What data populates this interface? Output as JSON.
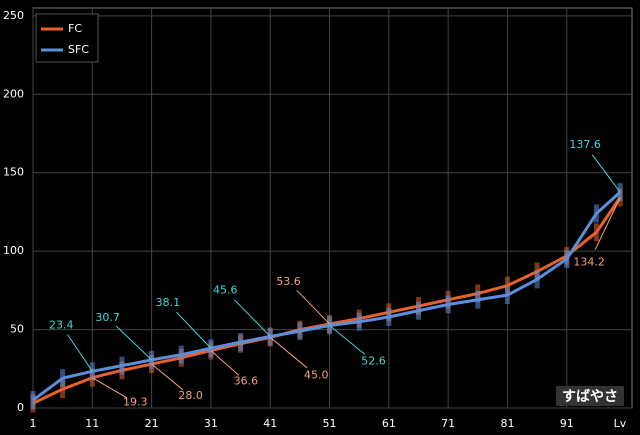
{
  "chart_data": {
    "type": "line",
    "annotation": "すばやさ",
    "xlabel": "Lv",
    "x": [
      1,
      6,
      11,
      16,
      21,
      26,
      31,
      36,
      41,
      46,
      51,
      56,
      61,
      66,
      71,
      76,
      81,
      86,
      91,
      96,
      100
    ],
    "series": [
      {
        "name": "FC",
        "color": "#e8602c",
        "label_color": "#f4a07c",
        "values": [
          3,
          12,
          19.3,
          24,
          28.0,
          32,
          36.6,
          41,
          45.0,
          50,
          53.6,
          57,
          61,
          65,
          69,
          73,
          78,
          87,
          97,
          112,
          134.2
        ],
        "value_labels": [
          null,
          null,
          "19.3",
          null,
          "28.0",
          null,
          "36.6",
          null,
          "45.0",
          null,
          "53.6",
          null,
          null,
          null,
          null,
          null,
          null,
          null,
          null,
          null,
          "134.2"
        ]
      },
      {
        "name": "SFC",
        "color": "#5b8fdd",
        "label_color": "#3fd8d8",
        "values": [
          5,
          19,
          23.4,
          27,
          30.7,
          34,
          38.1,
          42,
          45.6,
          49,
          52.6,
          55,
          58,
          62,
          66,
          69,
          72,
          82,
          95,
          124,
          137.6
        ],
        "value_labels": [
          null,
          null,
          "23.4",
          null,
          "30.7",
          null,
          "38.1",
          null,
          "45.6",
          null,
          "52.6",
          null,
          null,
          null,
          null,
          null,
          null,
          null,
          null,
          null,
          "137.6"
        ]
      }
    ],
    "xlim": [
      1,
      102
    ],
    "ylim": [
      0,
      255
    ],
    "xticks": [
      1,
      11,
      21,
      31,
      41,
      51,
      61,
      71,
      81,
      91
    ],
    "yticks": [
      0,
      50,
      100,
      150,
      200,
      250
    ],
    "grid": true
  }
}
